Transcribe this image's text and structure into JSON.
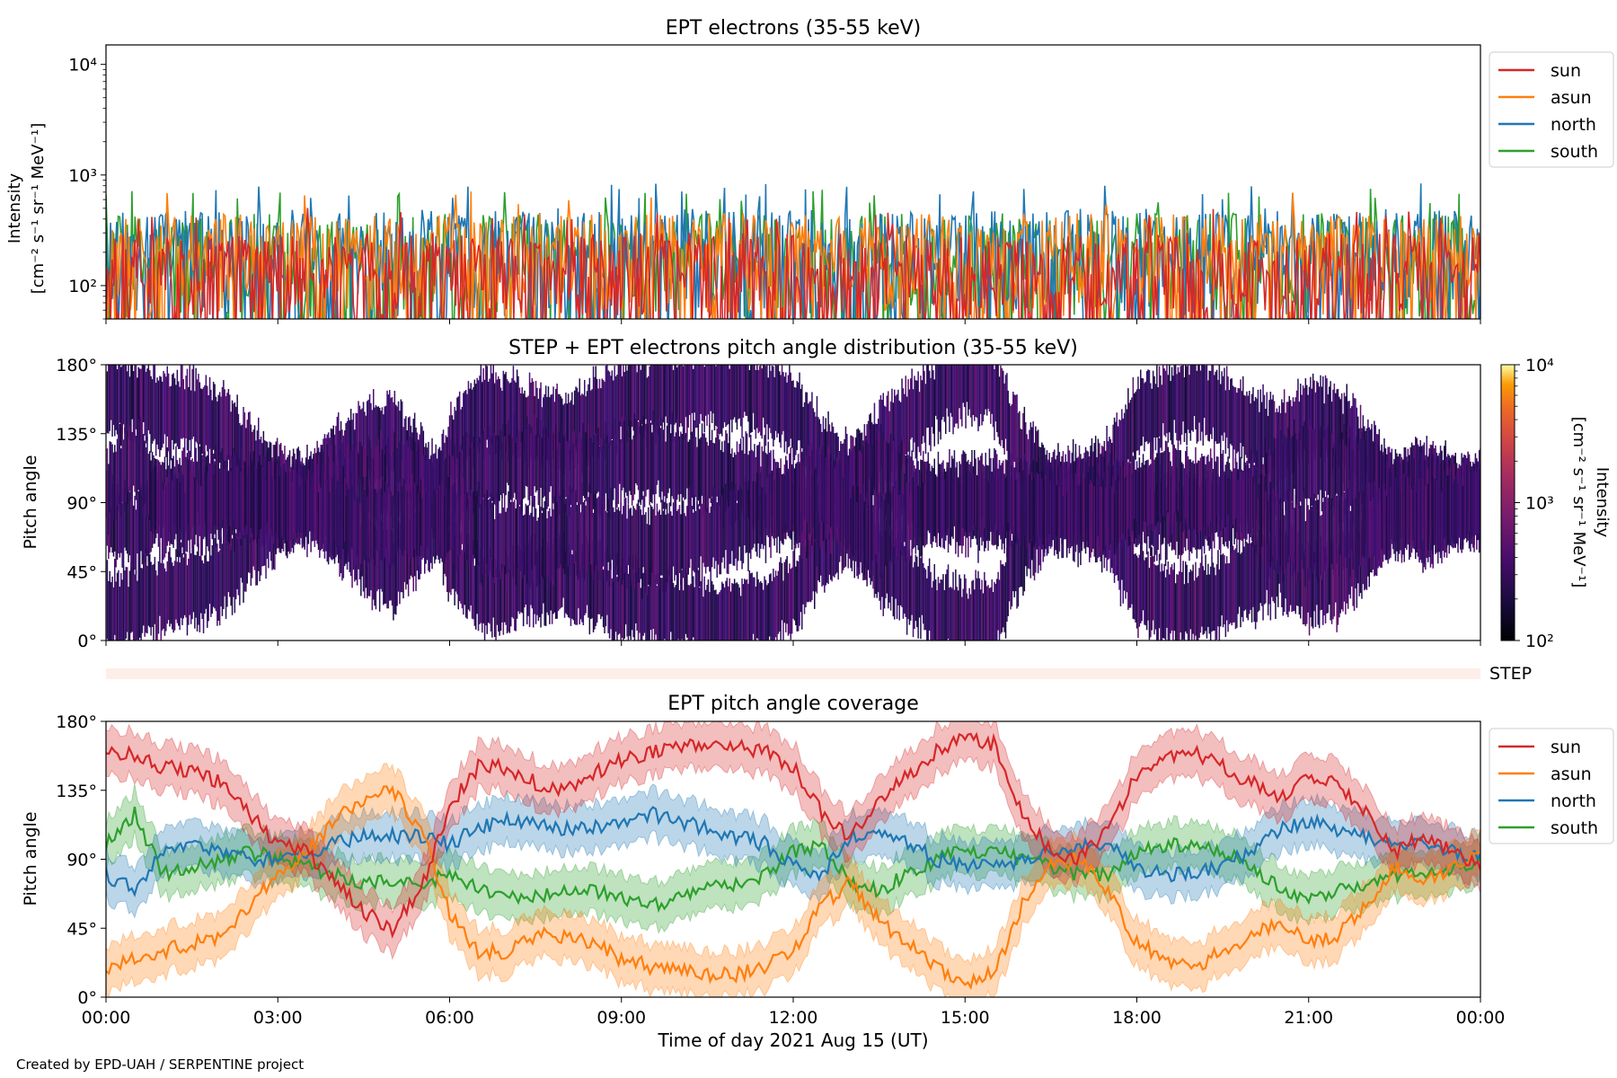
{
  "footer": "Created by EPD-UAH / SERPENTINE project",
  "colors": {
    "sun": "#d62728",
    "asun": "#ff7f0e",
    "north": "#1f77b4",
    "south": "#2ca02c",
    "step_band": "#fdeeea"
  },
  "chart_data": [
    {
      "type": "line",
      "title": "EPT electrons (35-55 keV)",
      "ylabel_line1": "Intensity",
      "ylabel_line2": "[cm⁻² s⁻¹ sr⁻¹ MeV⁻¹]",
      "y_scale": "log",
      "ylim": [
        50,
        15000
      ],
      "y_ticks": [
        100,
        1000,
        10000
      ],
      "y_tick_labels": [
        "10²",
        "10³",
        "10⁴"
      ],
      "x_range_hours": [
        0,
        24
      ],
      "legend": [
        "sun",
        "asun",
        "north",
        "south"
      ],
      "legend_position": "outside-right-top",
      "series": [
        {
          "name": "sun",
          "typical_range": [
            50,
            300
          ]
        },
        {
          "name": "asun",
          "typical_range": [
            50,
            450
          ]
        },
        {
          "name": "north",
          "typical_range": [
            50,
            500
          ]
        },
        {
          "name": "south",
          "typical_range": [
            50,
            450
          ]
        }
      ]
    },
    {
      "type": "heatmap",
      "title": "STEP + EPT electrons pitch angle distribution (35-55 keV)",
      "ylabel": "Pitch angle",
      "ylim": [
        0,
        180
      ],
      "y_ticks": [
        0,
        45,
        90,
        135,
        180
      ],
      "y_tick_labels": [
        "0°",
        "45°",
        "90°",
        "135°",
        "180°"
      ],
      "x_range_hours": [
        0,
        24
      ],
      "colorbar": {
        "label_line1": "Intensity",
        "label_line2": "[cm⁻² s⁻¹ sr⁻¹ MeV⁻¹]",
        "scale": "log",
        "range": [
          100,
          10000
        ],
        "tick_labels": [
          "10²",
          "10³",
          "10⁴"
        ],
        "colormap": "inferno"
      },
      "step_band_label": "STEP"
    },
    {
      "type": "line",
      "title": "EPT pitch angle coverage",
      "ylabel": "Pitch angle",
      "xlabel": "Time of day 2021 Aug 15 (UT)",
      "ylim": [
        0,
        180
      ],
      "y_ticks": [
        0,
        45,
        90,
        135,
        180
      ],
      "y_tick_labels": [
        "0°",
        "45°",
        "90°",
        "135°",
        "180°"
      ],
      "x_ticks_hours": [
        0,
        3,
        6,
        9,
        12,
        15,
        18,
        21,
        24
      ],
      "x_tick_labels": [
        "00:00",
        "03:00",
        "06:00",
        "09:00",
        "12:00",
        "15:00",
        "18:00",
        "21:00",
        "00:00"
      ],
      "legend": [
        "sun",
        "asun",
        "north",
        "south"
      ],
      "legend_position": "outside-right-top",
      "band_halfwidth_deg": 15,
      "series": [
        {
          "name": "sun",
          "t": [
            0,
            0.5,
            1,
            1.5,
            2,
            2.5,
            3,
            3.5,
            4,
            4.5,
            5,
            5.5,
            6,
            6.5,
            7,
            7.5,
            8,
            8.5,
            9,
            9.5,
            10,
            10.5,
            11,
            11.5,
            12,
            12.5,
            13,
            13.5,
            14,
            14.5,
            15,
            15.5,
            16,
            16.5,
            17,
            17.5,
            18,
            18.5,
            19,
            19.5,
            20,
            20.5,
            21,
            21.5,
            22,
            22.5,
            23,
            23.5,
            24
          ],
          "y": [
            160,
            158,
            150,
            148,
            140,
            120,
            100,
            95,
            75,
            55,
            45,
            70,
            125,
            150,
            150,
            140,
            135,
            145,
            155,
            160,
            162,
            165,
            165,
            160,
            150,
            120,
            105,
            130,
            145,
            160,
            170,
            165,
            120,
            95,
            90,
            110,
            145,
            155,
            160,
            150,
            140,
            130,
            145,
            140,
            120,
            95,
            105,
            95,
            85
          ]
        },
        {
          "name": "asun",
          "t": [
            0,
            0.5,
            1,
            1.5,
            2,
            2.5,
            3,
            3.5,
            4,
            4.5,
            5,
            5.5,
            6,
            6.5,
            7,
            7.5,
            8,
            8.5,
            9,
            9.5,
            10,
            10.5,
            11,
            11.5,
            12,
            12.5,
            13,
            13.5,
            14,
            14.5,
            15,
            15.5,
            16,
            16.5,
            17,
            17.5,
            18,
            18.5,
            19,
            19.5,
            20,
            20.5,
            21,
            21.5,
            22,
            22.5,
            23,
            23.5,
            24
          ],
          "y": [
            20,
            25,
            30,
            35,
            40,
            60,
            80,
            95,
            115,
            130,
            135,
            110,
            55,
            30,
            30,
            40,
            40,
            35,
            25,
            20,
            18,
            15,
            15,
            20,
            30,
            60,
            75,
            50,
            35,
            20,
            10,
            15,
            60,
            85,
            90,
            70,
            35,
            25,
            20,
            30,
            40,
            50,
            35,
            40,
            60,
            85,
            75,
            85,
            95
          ]
        },
        {
          "name": "north",
          "t": [
            0,
            0.5,
            1,
            1.5,
            2,
            2.5,
            3,
            3.5,
            4,
            4.5,
            5,
            5.5,
            6,
            6.5,
            7,
            7.5,
            8,
            8.5,
            9,
            9.5,
            10,
            10.5,
            11,
            11.5,
            12,
            12.5,
            13,
            13.5,
            14,
            14.5,
            15,
            15.5,
            16,
            16.5,
            17,
            17.5,
            18,
            18.5,
            19,
            19.5,
            20,
            20.5,
            21,
            21.5,
            22,
            22.5,
            23,
            23.5,
            24
          ],
          "y": [
            80,
            70,
            95,
            100,
            95,
            90,
            90,
            95,
            100,
            105,
            105,
            105,
            100,
            110,
            115,
            115,
            110,
            110,
            115,
            120,
            115,
            110,
            105,
            100,
            85,
            80,
            105,
            110,
            100,
            90,
            85,
            85,
            90,
            95,
            100,
            100,
            85,
            80,
            80,
            85,
            95,
            110,
            115,
            110,
            105,
            100,
            100,
            95,
            90
          ]
        },
        {
          "name": "south",
          "t": [
            0,
            0.5,
            1,
            1.5,
            2,
            2.5,
            3,
            3.5,
            4,
            4.5,
            5,
            5.5,
            6,
            6.5,
            7,
            7.5,
            8,
            8.5,
            9,
            9.5,
            10,
            10.5,
            11,
            11.5,
            12,
            12.5,
            13,
            13.5,
            14,
            14.5,
            15,
            15.5,
            16,
            16.5,
            17,
            17.5,
            18,
            18.5,
            19,
            19.5,
            20,
            20.5,
            21,
            21.5,
            22,
            22.5,
            23,
            23.5,
            24
          ],
          "y": [
            100,
            120,
            80,
            85,
            90,
            95,
            90,
            85,
            80,
            75,
            75,
            75,
            80,
            70,
            65,
            65,
            70,
            70,
            65,
            60,
            65,
            70,
            75,
            80,
            95,
            100,
            75,
            70,
            80,
            90,
            95,
            95,
            90,
            85,
            80,
            80,
            95,
            100,
            100,
            95,
            85,
            70,
            65,
            70,
            75,
            80,
            80,
            85,
            90
          ]
        }
      ]
    }
  ]
}
